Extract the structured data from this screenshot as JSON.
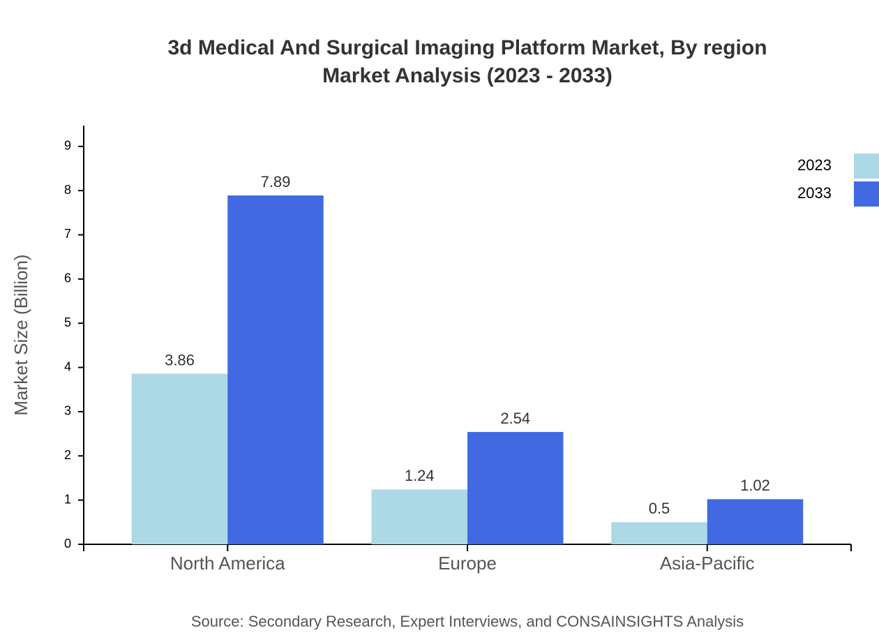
{
  "chart_data": {
    "type": "bar",
    "title": "3d Medical And Surgical Imaging Platform Market, By region",
    "subtitle": "Market Analysis (2023 - 2033)",
    "y_label": "Market Size (Billion)",
    "source": "Source: Secondary Research, Expert Interviews, and CONSAINSIGHTS Analysis",
    "categories": [
      "North America",
      "Europe",
      "Asia-Pacific"
    ],
    "series": [
      {
        "name": "2023",
        "color": "#add8e6",
        "values": [
          3.86,
          1.24,
          0.5
        ]
      },
      {
        "name": "2033",
        "color": "#4169e1",
        "values": [
          7.89,
          2.54,
          1.02
        ]
      }
    ],
    "ylim": [
      0,
      9.47
    ],
    "yticks": [
      0,
      1,
      2,
      3,
      4,
      5,
      6,
      7,
      8,
      9
    ],
    "grid": false,
    "legend": "top-right"
  }
}
